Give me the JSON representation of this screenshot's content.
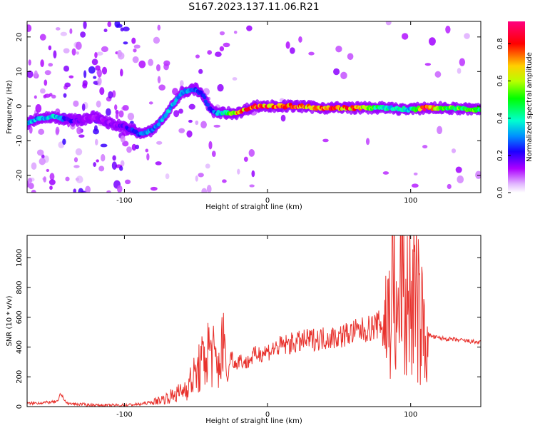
{
  "title": "S167.2023.137.11.06.R21",
  "colors": {
    "snr_line": "#e8322d",
    "axes": "#000000",
    "background": "#ffffff",
    "colorbar": [
      "#ffffff",
      "#ad00ff",
      "#1c00ff",
      "#0090ff",
      "#00ffd0",
      "#00ff00",
      "#b8ff00",
      "#ffd000",
      "#ff0000",
      "#ff0080"
    ]
  },
  "chart_data": [
    {
      "type": "heatmap",
      "xlabel": "Height of straight line (km)",
      "ylabel": "Frequency (Hz)",
      "xlim": [
        -168,
        149
      ],
      "ylim": [
        -25,
        24.5
      ],
      "x_ticks": [
        -100,
        0,
        100
      ],
      "x_tick_labels": [
        "-100",
        "0",
        "100"
      ],
      "y_ticks": [
        -20,
        -10,
        0,
        10,
        20
      ],
      "y_tick_labels": [
        "-20",
        "-10",
        "0",
        "10",
        "20"
      ],
      "colorbar": {
        "label": "Normalized spectral amplitude",
        "range": [
          0,
          0.92
        ],
        "ticks": [
          0.0,
          0.2,
          0.4,
          0.6,
          0.8
        ],
        "tick_labels": [
          "0.0",
          "0.2",
          "0.4",
          "0.6",
          "0.8"
        ]
      },
      "ridge": {
        "x": [
          -168,
          -160,
          -150,
          -140,
          -130,
          -120,
          -110,
          -100,
          -90,
          -80,
          -70,
          -60,
          -50,
          -45,
          -40,
          -35,
          -30,
          -20,
          -10,
          0,
          20,
          40,
          60,
          80,
          100,
          110,
          120,
          149
        ],
        "y": [
          -5,
          -3.5,
          -3,
          -4,
          -4,
          -3,
          -5,
          -6,
          -8,
          -7,
          -2,
          4,
          5,
          3,
          -1,
          -2,
          -2,
          -2,
          0,
          0,
          0,
          -0.5,
          -0.5,
          -0.5,
          -1,
          -0.5,
          -0.5,
          -1
        ],
        "amplitude": [
          0.4,
          0.35,
          0.4,
          0.25,
          0.15,
          0.15,
          0.15,
          0.2,
          0.3,
          0.35,
          0.35,
          0.4,
          0.3,
          0.25,
          0.25,
          0.35,
          0.45,
          0.75,
          0.85,
          0.85,
          0.85,
          0.85,
          0.8,
          0.45,
          0.4,
          0.9,
          0.6,
          0.55
        ]
      }
    },
    {
      "type": "line",
      "xlabel": "Height of straight line (km)",
      "ylabel": "SNR (10 * v/v)",
      "xlim": [
        -168,
        149
      ],
      "ylim": [
        0,
        1150
      ],
      "x_ticks": [
        -100,
        0,
        100
      ],
      "x_tick_labels": [
        "-100",
        "0",
        "100"
      ],
      "y_ticks": [
        0,
        200,
        400,
        600,
        800,
        1000
      ],
      "y_tick_labels": [
        "0",
        "200",
        "400",
        "600",
        "800",
        "1000"
      ],
      "series": [
        {
          "x": [
            -168,
            -160,
            -150,
            -146,
            -145,
            -140,
            -130,
            -120,
            -110,
            -100,
            -90,
            -80,
            -70,
            -60,
            -55,
            -50,
            -45,
            -40,
            -35,
            -30,
            -28,
            -26,
            -22,
            -20,
            -15,
            -10,
            -5,
            0,
            5,
            10,
            20,
            30,
            40,
            50,
            60,
            70,
            80,
            85,
            88,
            90,
            92,
            94,
            95,
            96,
            98,
            100,
            103,
            106,
            108,
            110,
            115,
            120,
            130,
            140,
            149
          ],
          "y": [
            20,
            25,
            30,
            35,
            90,
            20,
            15,
            10,
            8,
            10,
            15,
            30,
            60,
            100,
            150,
            220,
            300,
            400,
            250,
            450,
            150,
            350,
            280,
            320,
            290,
            340,
            360,
            370,
            390,
            410,
            430,
            450,
            460,
            470,
            500,
            520,
            560,
            620,
            900,
            500,
            600,
            1150,
            750,
            500,
            820,
            700,
            760,
            600,
            550,
            500,
            470,
            460,
            450,
            440,
            430
          ]
        }
      ]
    }
  ]
}
